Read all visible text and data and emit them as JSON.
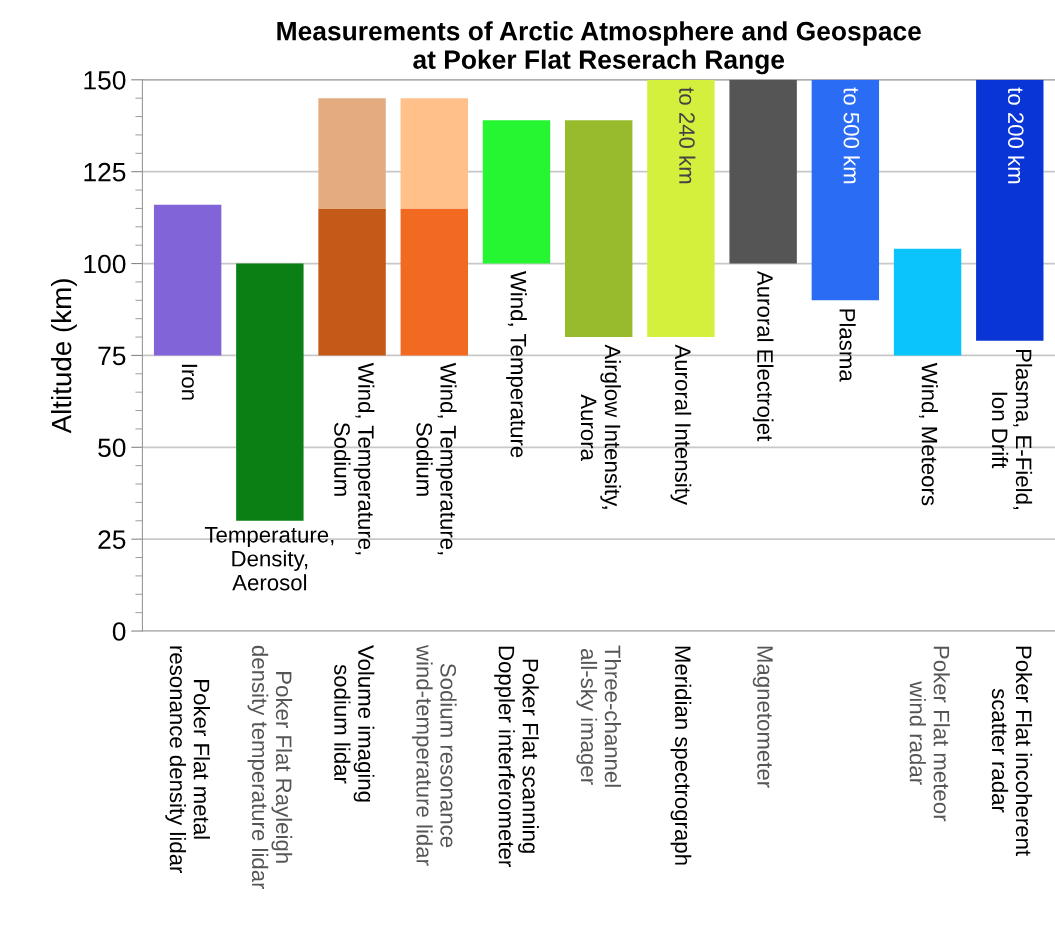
{
  "chart_data": {
    "type": "bar",
    "title": "Measurements of Arctic Atmosphere and Geospace\nat Poker Flat Reserach Range",
    "ylabel": "Altitude (km)",
    "categories": [
      "Poker Flat metal\nresonance density lidar",
      "Poker Flat Rayleigh\ndensity temperature lidar",
      "Volume imaging\nsodium lidar",
      "Sodium resonance\nwind-temperature lidar",
      "Poker Flat scanning\nDoppler interferometer",
      "Three-channel\nall-sky imager",
      "Meridian spectrograph",
      "Magnetometer",
      null,
      "Poker Flat meteor\nwind radar",
      "Poker Flat incoherent\nscatter radar"
    ],
    "series": [
      {
        "colors": [
          "#8064d8",
          "#0a7f14",
          "#c55a18",
          "#f26a21",
          "#26f531",
          "#98bb2e",
          "#d4f03c",
          "#555555",
          "#2b6cf5",
          "#0bc4fb",
          "#0a35d6"
        ],
        "base": [
          75,
          30,
          75,
          75,
          100,
          80,
          80,
          100,
          90,
          75,
          79
        ],
        "values": [
          41,
          70,
          40,
          40,
          39,
          59,
          70,
          50,
          60,
          29,
          71
        ],
        "value_labels": [
          null,
          null,
          null,
          null,
          null,
          null,
          "to 240 km",
          null,
          "to 500 km",
          null,
          "to 200 km"
        ]
      },
      {
        "colors": [
          null,
          null,
          "#e3ac80",
          "#ffc08a",
          null,
          null,
          null,
          null,
          null,
          null,
          null
        ],
        "base": [
          null,
          null,
          115,
          115,
          null,
          null,
          null,
          null,
          null,
          null,
          null
        ],
        "values": [
          null,
          null,
          30,
          30,
          null,
          null,
          null,
          null,
          null,
          null,
          null
        ]
      }
    ],
    "annotations": [
      "Iron",
      "Temperature,\nDensity,\nAerosol",
      "Wind, Temperature,\nSodium",
      "Wind, Temperature,\nSodium",
      "Wind, Temperature",
      "Airglow Intensity,\nAurora",
      "Auroral Intensity",
      "Auroral Electrojet",
      "Plasma",
      "Wind, Meteors",
      "Plasma, E-Field,\nIon Drift"
    ],
    "ylim": [
      0,
      150
    ],
    "yticks": [
      0,
      25,
      50,
      75,
      100,
      125,
      150
    ],
    "grid": "y"
  }
}
